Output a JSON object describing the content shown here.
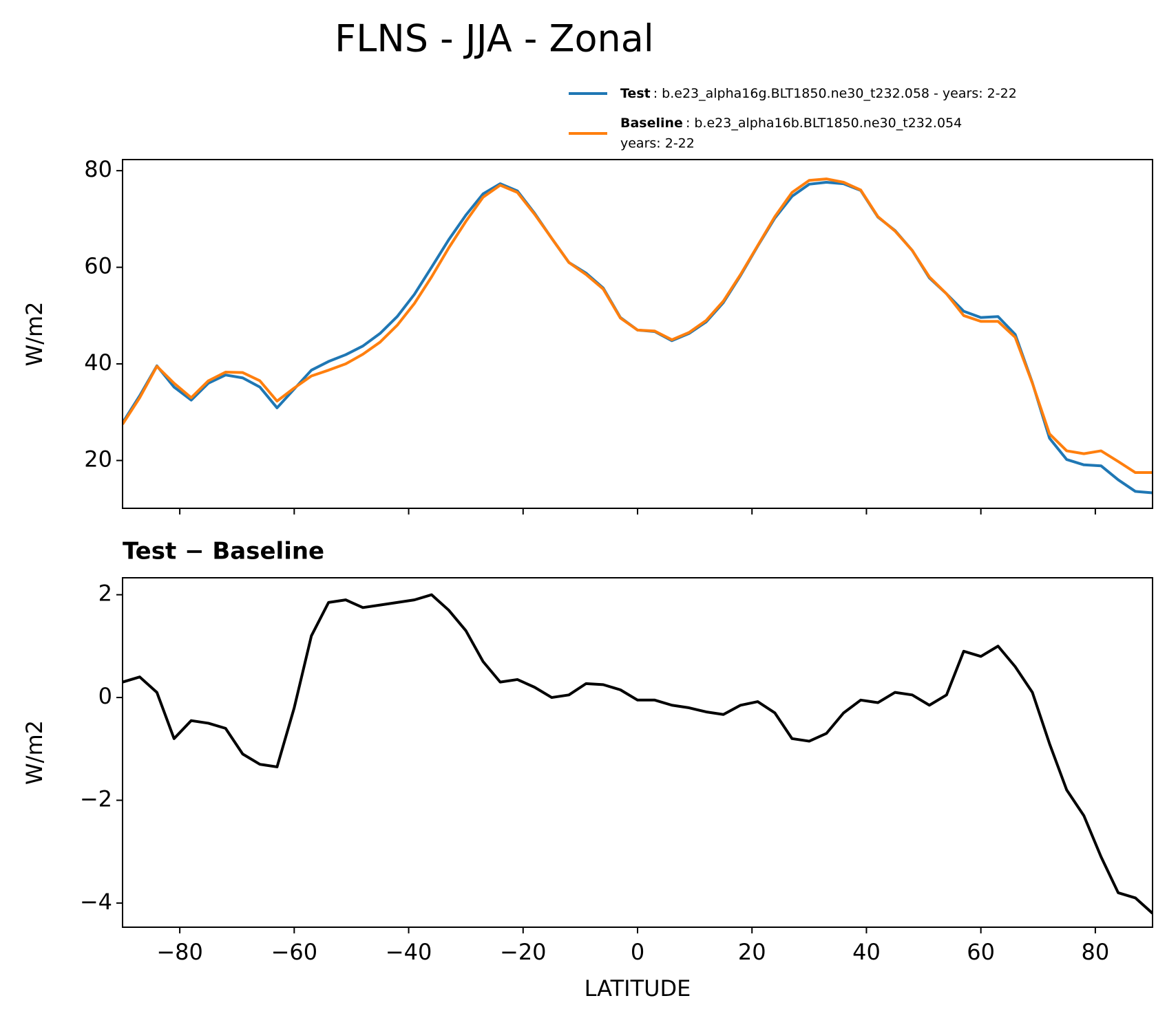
{
  "title": "FLNS - JJA - Zonal",
  "chart_data": [
    {
      "type": "line",
      "ylabel": "W/m2",
      "x": [
        -90,
        -87,
        -84,
        -81,
        -78,
        -75,
        -72,
        -69,
        -66,
        -63,
        -60,
        -57,
        -54,
        -51,
        -48,
        -45,
        -42,
        -39,
        -36,
        -33,
        -30,
        -27,
        -24,
        -21,
        -18,
        -15,
        -12,
        -9,
        -6,
        -3,
        0,
        3,
        6,
        9,
        12,
        15,
        18,
        21,
        24,
        27,
        30,
        33,
        36,
        39,
        42,
        45,
        48,
        51,
        54,
        57,
        60,
        63,
        66,
        69,
        72,
        75,
        78,
        81,
        84,
        87,
        90
      ],
      "series": [
        {
          "name": "Test",
          "label_lines": [
            ": b.e23_alpha16g.BLT1850.ne30_t232.058 - years: 2-22"
          ],
          "color": "#1f77b4",
          "values": [
            27.8,
            33.4,
            39.6,
            35.2,
            32.5,
            36.0,
            37.7,
            37.1,
            35.2,
            30.9,
            34.8,
            38.7,
            40.5,
            41.9,
            43.7,
            46.3,
            49.8,
            54.4,
            60.0,
            65.7,
            70.8,
            75.2,
            77.3,
            75.8,
            71.2,
            66.0,
            61.0,
            58.8,
            55.7,
            49.6,
            47.0,
            46.7,
            44.8,
            46.3,
            48.7,
            52.7,
            58.3,
            64.4,
            70.2,
            74.7,
            77.2,
            77.6,
            77.3,
            75.9,
            70.4,
            67.6,
            63.5,
            57.8,
            54.5,
            50.9,
            49.6,
            49.8,
            46.1,
            36.1,
            24.6,
            20.2,
            19.1,
            18.9,
            16.0,
            13.6,
            13.3
          ]
        },
        {
          "name": "Baseline",
          "label_lines": [
            ": b.e23_alpha16b.BLT1850.ne30_t232.054",
            "years: 2-22"
          ],
          "color": "#ff7f0e",
          "values": [
            27.5,
            33,
            39.5,
            36,
            33,
            36.5,
            38.3,
            38.2,
            36.5,
            32.3,
            35,
            37.5,
            38.7,
            40,
            42,
            44.5,
            48,
            52.5,
            58,
            64,
            69.5,
            74.5,
            77,
            75.5,
            71,
            66,
            61,
            58.5,
            55.5,
            49.5,
            47,
            46.8,
            45,
            46.5,
            49,
            53,
            58.5,
            64.5,
            70.5,
            75.5,
            78,
            78.3,
            77.6,
            76,
            70.5,
            67.5,
            63.5,
            58,
            54.5,
            50,
            48.8,
            48.8,
            45.5,
            36,
            25.5,
            22,
            21.4,
            22,
            19.8,
            17.5,
            17.5
          ]
        }
      ],
      "xlim": [
        -90,
        90
      ],
      "xticks": [
        -80,
        -60,
        -40,
        -20,
        0,
        20,
        40,
        60,
        80
      ],
      "ylim": [
        10.1,
        82.3
      ],
      "yticks": [
        20,
        40,
        60,
        80
      ]
    },
    {
      "type": "line",
      "title": "Test − Baseline",
      "xlabel": "LATITUDE",
      "ylabel": "W/m2",
      "x": [
        -90,
        -87,
        -84,
        -81,
        -78,
        -75,
        -72,
        -69,
        -66,
        -63,
        -60,
        -57,
        -54,
        -51,
        -48,
        -45,
        -42,
        -39,
        -36,
        -33,
        -30,
        -27,
        -24,
        -21,
        -18,
        -15,
        -12,
        -9,
        -6,
        -3,
        0,
        3,
        6,
        9,
        12,
        15,
        18,
        21,
        24,
        27,
        30,
        33,
        36,
        39,
        42,
        45,
        48,
        51,
        54,
        57,
        60,
        63,
        66,
        69,
        72,
        75,
        78,
        81,
        84,
        87,
        90
      ],
      "series": [
        {
          "color": "#000000",
          "values": [
            0.3,
            0.4,
            0.1,
            -0.8,
            -0.45,
            -0.5,
            -0.6,
            -1.1,
            -1.3,
            -1.35,
            -0.2,
            1.2,
            1.85,
            1.9,
            1.75,
            1.8,
            1.85,
            1.9,
            2.0,
            1.7,
            1.3,
            0.7,
            0.3,
            0.35,
            0.2,
            0.0,
            0.05,
            0.27,
            0.25,
            0.15,
            -0.05,
            -0.05,
            -0.15,
            -0.2,
            -0.28,
            -0.33,
            -0.15,
            -0.08,
            -0.3,
            -0.8,
            -0.85,
            -0.7,
            -0.3,
            -0.05,
            -0.1,
            0.1,
            0.05,
            -0.15,
            0.05,
            0.9,
            0.8,
            1.0,
            0.6,
            0.1,
            -0.9,
            -1.8,
            -2.3,
            -3.1,
            -3.8,
            -3.9,
            -4.2
          ]
        }
      ],
      "xlim": [
        -90,
        90
      ],
      "xticks": [
        {
          "value": -80,
          "label": "−80"
        },
        {
          "value": -60,
          "label": "−60"
        },
        {
          "value": -40,
          "label": "−40"
        },
        {
          "value": -20,
          "label": "−20"
        },
        0,
        20,
        40,
        60,
        80
      ],
      "ylim": [
        -4.47,
        2.33
      ],
      "yticks": [
        {
          "value": -4,
          "label": "−4"
        },
        {
          "value": -2,
          "label": "−2"
        },
        0,
        2
      ]
    }
  ]
}
